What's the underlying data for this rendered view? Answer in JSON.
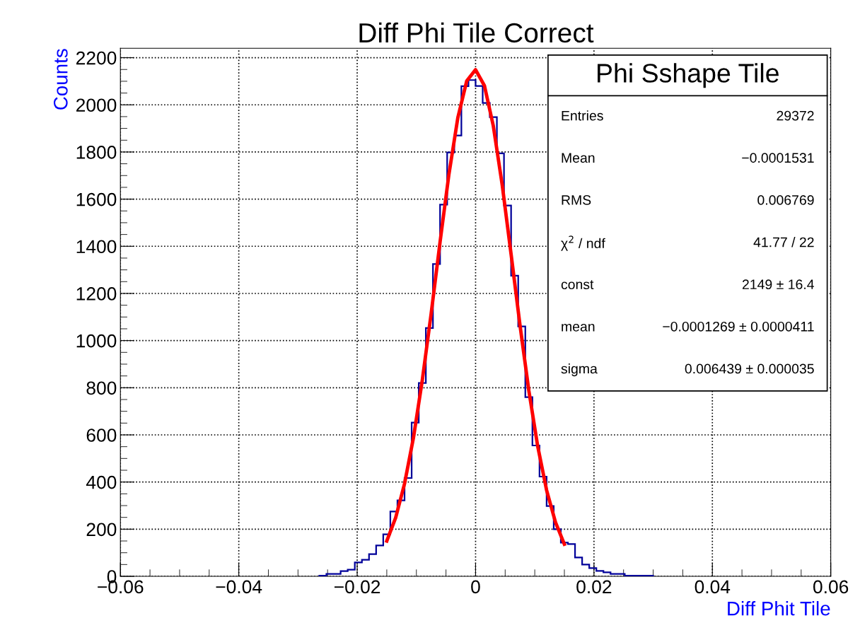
{
  "chart_data": {
    "type": "histogram",
    "title": "Diff Phi Tile Correct",
    "xlabel": "Diff Phit Tile",
    "ylabel": "Counts",
    "bins": [
      -0.0264,
      -0.0252,
      -0.024,
      -0.0228,
      -0.0216,
      -0.0204,
      -0.0192,
      -0.018,
      -0.0168,
      -0.0156,
      -0.0144,
      -0.0132,
      -0.012,
      -0.0108,
      -0.0096,
      -0.0084,
      -0.0072,
      -0.006,
      -0.0048,
      -0.0036,
      -0.0024,
      -0.0012,
      0.0,
      0.0012,
      0.0024,
      0.0036,
      0.0048,
      0.006,
      0.0072,
      0.0084,
      0.0096,
      0.0108,
      0.012,
      0.0132,
      0.0144,
      0.0156,
      0.0168,
      0.018,
      0.0192,
      0.0204,
      0.0216,
      0.0228,
      0.024,
      0.0252,
      0.0264,
      0.0276,
      0.0288,
      0.03
    ],
    "series": [
      {
        "color": "#000099",
        "values": [
          3,
          10,
          10,
          22,
          28,
          59,
          70,
          94,
          131,
          178,
          275,
          322,
          417,
          652,
          820,
          1053,
          1325,
          1577,
          1798,
          1870,
          2079,
          2105,
          2080,
          2008,
          1948,
          1794,
          1573,
          1275,
          1060,
          760,
          555,
          423,
          298,
          200,
          143,
          137,
          80,
          50,
          35,
          23,
          17,
          10,
          10,
          3,
          3,
          3,
          3
        ]
      },
      {
        "type": "line",
        "color": "#ff0000",
        "x": [
          -0.015,
          -0.0135,
          -0.012,
          -0.0105,
          -0.009,
          -0.0075,
          -0.006,
          -0.0045,
          -0.003,
          -0.0015,
          0,
          0.0015,
          0.003,
          0.0045,
          0.006,
          0.0075,
          0.009,
          0.0105,
          0.012,
          0.0135,
          0.015
        ],
        "values": [
          150,
          249,
          393,
          587,
          832,
          1115,
          1418,
          1706,
          1945,
          2101,
          2149,
          2081,
          1910,
          1660,
          1366,
          1066,
          787,
          551,
          365,
          229,
          136
        ]
      }
    ],
    "xlim": [
      -0.06,
      0.06
    ],
    "xticks": [
      {
        "value": -0.06,
        "label": "−0.06"
      },
      {
        "value": -0.04,
        "label": "−0.04"
      },
      {
        "value": -0.02,
        "label": "−0.02"
      },
      0,
      0.02,
      0.04,
      0.06
    ],
    "ylim": [
      0,
      2240
    ],
    "yticks": [
      0,
      200,
      400,
      600,
      800,
      1000,
      1200,
      1400,
      1600,
      1800,
      2000,
      2200
    ],
    "grid": true,
    "annotations": [
      "Phi Sshape Tile",
      "Entries",
      "29372",
      "Mean",
      "−0.0001531",
      "RMS",
      "0.006769",
      "χ$^{2}$ / ndf",
      "41.77 / 22",
      "const",
      "2149 ± 16.4",
      "mean",
      "−0.0001269 ± 0.0000411",
      "sigma",
      "0.006439 ± 0.000035"
    ]
  }
}
